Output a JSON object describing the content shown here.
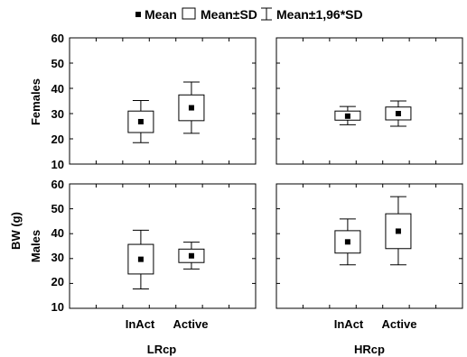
{
  "chart_data": {
    "type": "box",
    "legend": {
      "position": "top",
      "items": [
        {
          "label": "Mean",
          "symbol": "filled-square"
        },
        {
          "label": "Mean±SD",
          "symbol": "box"
        },
        {
          "label": "Mean±1,96*SD",
          "symbol": "whisker"
        }
      ]
    },
    "ylabel": "BW (g)",
    "ylim": [
      10,
      60
    ],
    "yticks": [
      "10",
      "20",
      "30",
      "40",
      "50",
      "60"
    ],
    "categories": [
      "InAct",
      "Active"
    ],
    "row_labels": [
      "Females",
      "Males"
    ],
    "column_labels": [
      "LRcp",
      "HRcp"
    ],
    "grid": false,
    "panels": [
      {
        "row": "Females",
        "column": "LRcp",
        "boxes": [
          {
            "category": "InAct",
            "mean": 26.8,
            "sd_low": 22.5,
            "sd_high": 31.0,
            "ci_low": 18.5,
            "ci_high": 35.2
          },
          {
            "category": "Active",
            "mean": 32.3,
            "sd_low": 27.2,
            "sd_high": 37.4,
            "ci_low": 22.2,
            "ci_high": 42.5
          }
        ]
      },
      {
        "row": "Females",
        "column": "HRcp",
        "boxes": [
          {
            "category": "InAct",
            "mean": 29.0,
            "sd_low": 27.4,
            "sd_high": 31.0,
            "ci_low": 25.6,
            "ci_high": 32.8
          },
          {
            "category": "Active",
            "mean": 30.0,
            "sd_low": 27.5,
            "sd_high": 32.6,
            "ci_low": 25.0,
            "ci_high": 35.0
          }
        ]
      },
      {
        "row": "Males",
        "column": "LRcp",
        "boxes": [
          {
            "category": "InAct",
            "mean": 29.7,
            "sd_low": 23.8,
            "sd_high": 35.7,
            "ci_low": 17.8,
            "ci_high": 41.4
          },
          {
            "category": "Active",
            "mean": 31.1,
            "sd_low": 28.4,
            "sd_high": 33.8,
            "ci_low": 25.8,
            "ci_high": 36.6
          }
        ]
      },
      {
        "row": "Males",
        "column": "HRcp",
        "boxes": [
          {
            "category": "InAct",
            "mean": 36.7,
            "sd_low": 32.2,
            "sd_high": 41.2,
            "ci_low": 27.5,
            "ci_high": 45.9
          },
          {
            "category": "Active",
            "mean": 41.0,
            "sd_low": 34.0,
            "sd_high": 48.0,
            "ci_low": 27.5,
            "ci_high": 54.9
          }
        ]
      }
    ]
  }
}
